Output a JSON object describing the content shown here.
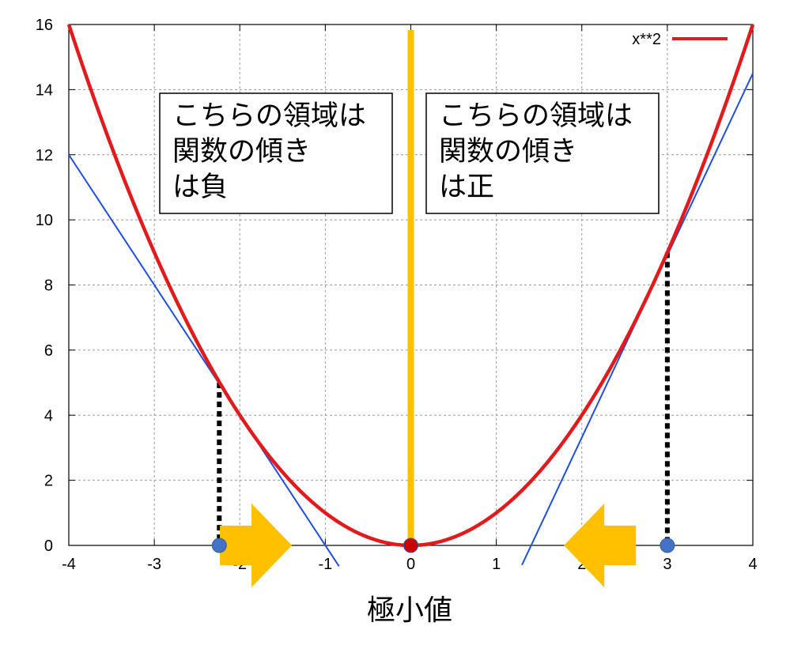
{
  "chart_data": {
    "type": "line",
    "xlim": [
      -4,
      4
    ],
    "ylim": [
      0,
      16
    ],
    "x_ticks": [
      "-4",
      "-3",
      "-2",
      "-1",
      "0",
      "1",
      "2",
      "3",
      "4"
    ],
    "y_ticks": [
      "0",
      "2",
      "4",
      "6",
      "8",
      "10",
      "12",
      "14",
      "16"
    ],
    "grid": true,
    "xlabel": "極小値",
    "ylabel": "",
    "legend_position": "top-right",
    "series": [
      {
        "name": "x**2",
        "color": "#e31a1c",
        "function": "x**2",
        "x": [
          -4,
          -3.5,
          -3,
          -2.5,
          -2.24,
          -2,
          -1.5,
          -1,
          -0.5,
          0,
          0.5,
          1,
          1.5,
          2,
          2.5,
          3,
          3.5,
          4
        ],
        "y": [
          16,
          12.25,
          9,
          6.25,
          5,
          4,
          2.25,
          1,
          0.25,
          0,
          0.25,
          1,
          2.25,
          4,
          6.25,
          9,
          12.25,
          16
        ]
      }
    ],
    "tangent_lines": [
      {
        "color": "#1f4fe0",
        "x": [
          -4,
          -0.84
        ],
        "y": [
          12,
          -0.64
        ]
      },
      {
        "color": "#1f4fe0",
        "x": [
          1.3,
          4
        ],
        "y": [
          -0.6,
          14.5
        ]
      }
    ],
    "points": [
      {
        "x": -2.24,
        "y": 0,
        "color": "#4472c4"
      },
      {
        "x": 3,
        "y": 0,
        "color": "#4472c4"
      },
      {
        "x": 0,
        "y": 0,
        "color": "#cc0000"
      }
    ],
    "dotted_drops": [
      {
        "x": -2.24,
        "y": 5
      },
      {
        "x": 3,
        "y": 9
      }
    ],
    "vertical_line": {
      "x": 0,
      "color": "#ffc000"
    },
    "arrows": [
      {
        "direction": "right",
        "x_center": -1.9,
        "color": "#ffc000"
      },
      {
        "direction": "left",
        "x_center": 2.3,
        "color": "#ffc000"
      }
    ],
    "annotations": [
      {
        "lines": [
          "こちらの領域は",
          "関数の傾き",
          "は負"
        ]
      },
      {
        "lines": [
          "こちらの領域は",
          "関数の傾き",
          "は正"
        ]
      }
    ]
  }
}
